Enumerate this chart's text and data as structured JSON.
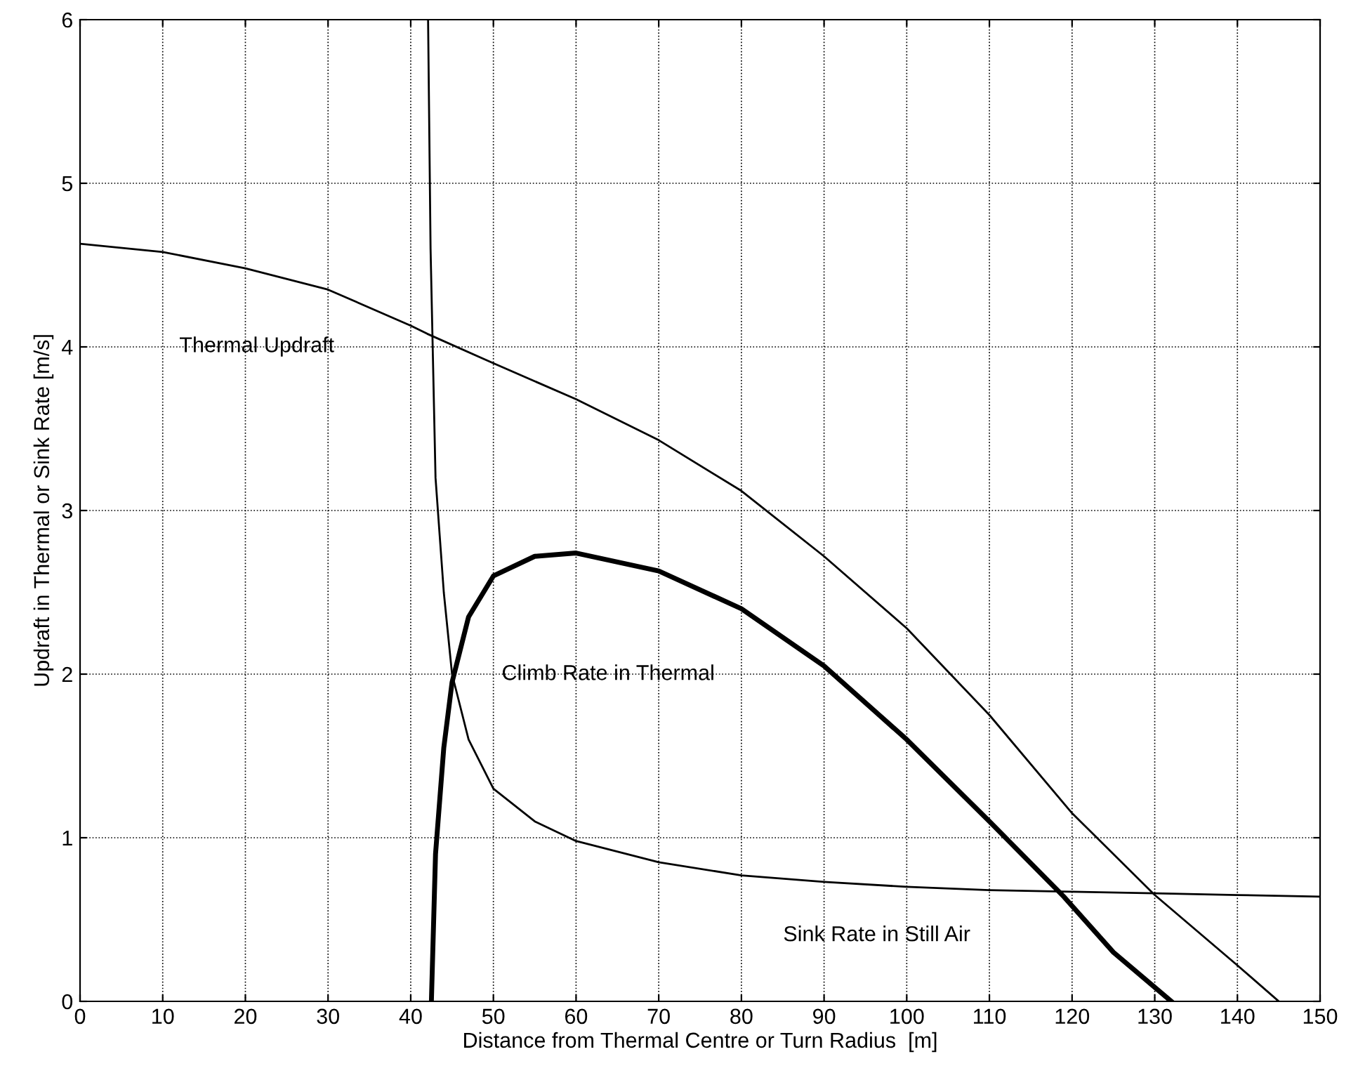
{
  "chart_data": {
    "type": "line",
    "xlabel": "Distance from Thermal Centre or Turn Radius  [m]",
    "ylabel": "Updraft in Thermal or Sink Rate [m/s]",
    "xlim": [
      0,
      150
    ],
    "ylim": [
      0,
      6
    ],
    "xticks": [
      0,
      10,
      20,
      30,
      40,
      50,
      60,
      70,
      80,
      90,
      100,
      110,
      120,
      130,
      140,
      150
    ],
    "yticks": [
      0,
      1,
      2,
      3,
      4,
      5,
      6
    ],
    "grid": true,
    "line_style": "solid",
    "marker": "none",
    "series": [
      {
        "name": "Thermal Updraft",
        "color": "#000000",
        "x": [
          0,
          10,
          20,
          30,
          40,
          42,
          50,
          60,
          70,
          80,
          90,
          100,
          110,
          120,
          130,
          140,
          145
        ],
        "values": [
          4.63,
          4.58,
          4.48,
          4.35,
          4.13,
          4.08,
          3.9,
          3.68,
          3.43,
          3.12,
          2.72,
          2.28,
          1.75,
          1.15,
          0.65,
          0.22,
          0
        ]
      },
      {
        "name": "Sink Rate in Still Air",
        "color": "#000000",
        "x": [
          42.1,
          42.4,
          43,
          44,
          45,
          47,
          50,
          55,
          60,
          70,
          80,
          90,
          100,
          110,
          120,
          130,
          140,
          150
        ],
        "values": [
          6,
          4.6,
          3.2,
          2.5,
          2.0,
          1.6,
          1.3,
          1.1,
          0.98,
          0.85,
          0.77,
          0.73,
          0.7,
          0.68,
          0.67,
          0.66,
          0.65,
          0.64
        ]
      },
      {
        "name": "Climb Rate in Thermal",
        "color": "#000000",
        "x": [
          42.5,
          43,
          44,
          45,
          47,
          50,
          55,
          60,
          70,
          80,
          90,
          100,
          110,
          119,
          125,
          132
        ],
        "values": [
          0,
          0.9,
          1.55,
          1.95,
          2.35,
          2.6,
          2.72,
          2.74,
          2.63,
          2.4,
          2.05,
          1.6,
          1.1,
          0.64,
          0.3,
          0
        ]
      }
    ]
  }
}
